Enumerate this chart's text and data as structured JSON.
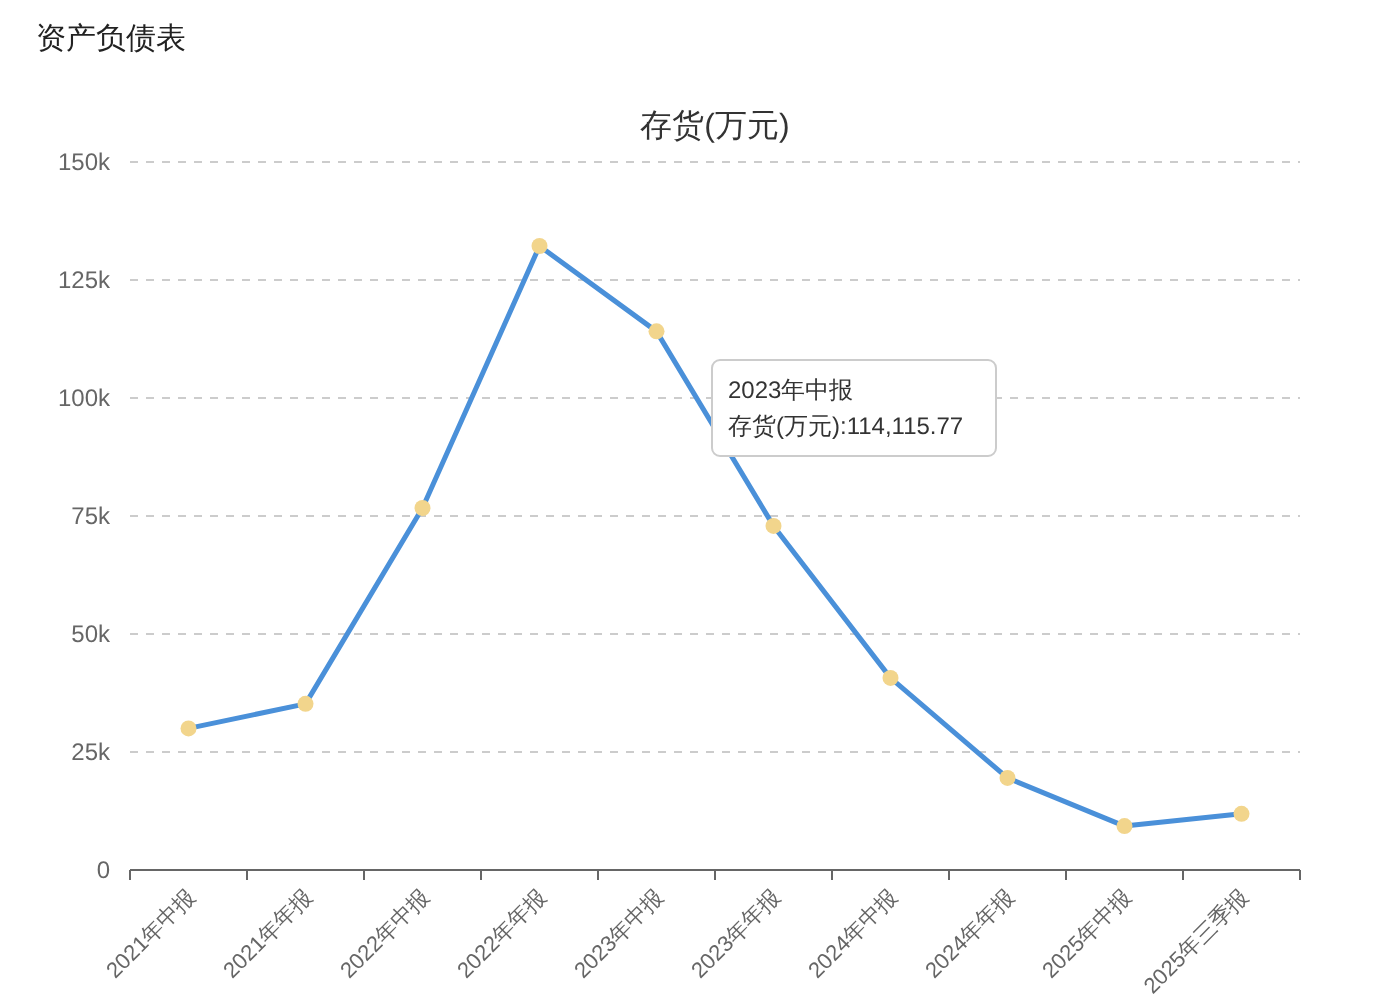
{
  "chart_data": {
    "type": "line",
    "title": "存货(万元)",
    "subtitle": "资产负债表",
    "categories": [
      "2021年中报",
      "2021年年报",
      "2022年中报",
      "2022年年报",
      "2023年中报",
      "2023年年报",
      "2024年中报",
      "2024年年报",
      "2025年中报",
      "2025年三季报"
    ],
    "series": [
      {
        "color": "#4a90d9",
        "values": [
          30000,
          35200,
          76700,
          132200,
          114115.77,
          72900,
          40700,
          19500,
          9300,
          11900
        ]
      }
    ],
    "ylim": [
      0,
      150000
    ],
    "yticks": [
      0,
      {
        "value": 25000,
        "label": "25k"
      },
      {
        "value": 50000,
        "label": "50k"
      },
      {
        "value": 75000,
        "label": "75k"
      },
      {
        "value": 100000,
        "label": "100k"
      },
      {
        "value": 125000,
        "label": "125k"
      },
      {
        "value": 150000,
        "label": "150k"
      }
    ],
    "grid": "y",
    "marker": "circle",
    "line_style": "solid",
    "annotations": [
      "2023年中报",
      "存货(万元):114,115.77"
    ]
  }
}
